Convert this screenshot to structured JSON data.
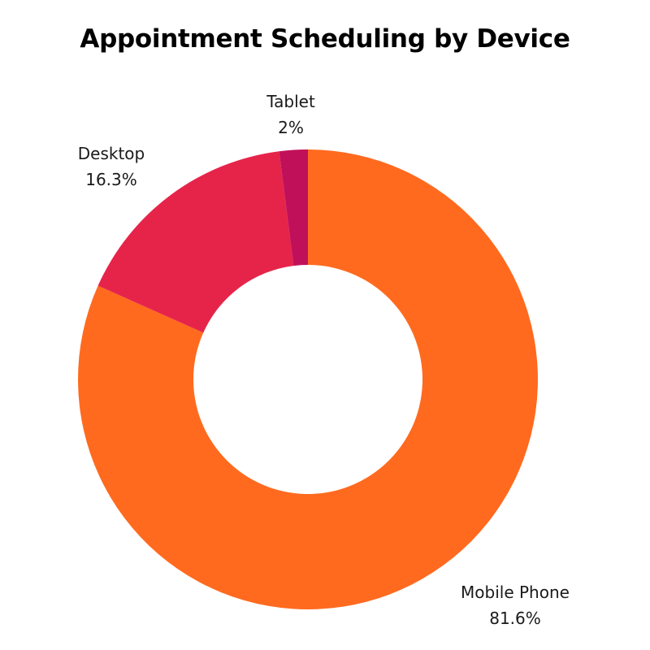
{
  "chart_data": {
    "type": "pie",
    "variant": "donut",
    "title": "Appointment Scheduling by Device",
    "categories": [
      "Mobile Phone",
      "Desktop",
      "Tablet"
    ],
    "values": [
      81.6,
      16.3,
      2
    ],
    "value_labels": [
      "81.6%",
      "16.3%",
      "2%"
    ],
    "colors": [
      "#FF6A1F",
      "#E6244A",
      "#C1105A"
    ],
    "start_angle": "12 o'clock",
    "direction": "clockwise",
    "legend": "none"
  }
}
